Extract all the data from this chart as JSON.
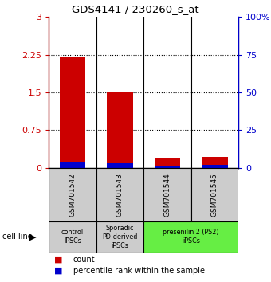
{
  "title": "GDS4141 / 230260_s_at",
  "samples": [
    "GSM701542",
    "GSM701543",
    "GSM701544",
    "GSM701545"
  ],
  "count_values": [
    2.2,
    1.5,
    0.2,
    0.22
  ],
  "percentile_values": [
    0.12,
    0.09,
    0.04,
    0.05
  ],
  "ylim_left": [
    0,
    3
  ],
  "ylim_right": [
    0,
    100
  ],
  "yticks_left": [
    0,
    0.75,
    1.5,
    2.25,
    3
  ],
  "ytick_labels_left": [
    "0",
    "0.75",
    "1.5",
    "2.25",
    "3"
  ],
  "yticks_right": [
    0,
    25,
    50,
    75,
    100
  ],
  "ytick_labels_right": [
    "0",
    "25",
    "50",
    "75",
    "100%"
  ],
  "hlines": [
    0.75,
    1.5,
    2.25
  ],
  "count_color": "#cc0000",
  "percentile_color": "#0000cc",
  "sample_box_color": "#cccccc",
  "group_info": [
    {
      "label": "control\nIPSCs",
      "start": 0,
      "end": 1,
      "color": "#cccccc"
    },
    {
      "label": "Sporadic\nPD-derived\niPSCs",
      "start": 1,
      "end": 2,
      "color": "#cccccc"
    },
    {
      "label": "presenilin 2 (PS2)\niPSCs",
      "start": 2,
      "end": 4,
      "color": "#66ee44"
    }
  ],
  "cell_line_label": "cell line",
  "legend_count": "count",
  "legend_percentile": "percentile rank within the sample",
  "bar_width": 0.55
}
